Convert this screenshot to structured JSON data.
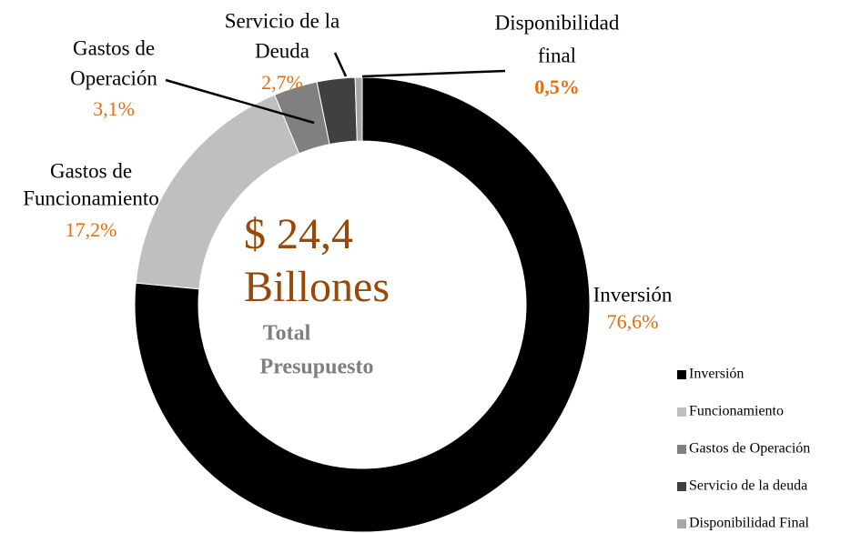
{
  "chart_data": {
    "type": "donut",
    "categories": [
      "Inversión",
      "Funcionamiento",
      "Gastos de Operación",
      "Servicio de la deuda",
      "Disponibilidad Final"
    ],
    "slice_labels": [
      [
        "Inversión"
      ],
      [
        "Gastos de",
        "Funcionamiento"
      ],
      [
        "Gastos de",
        "Operación"
      ],
      [
        "Servicio de la",
        "Deuda"
      ],
      [
        "Disponibilidad",
        "final"
      ]
    ],
    "values": [
      76.6,
      17.2,
      3.1,
      2.7,
      0.5
    ],
    "value_labels": [
      "76,6%",
      "17,2%",
      "3,1%",
      "2,7%",
      "0,5%"
    ],
    "colors": [
      "#000000",
      "#bfbfbf",
      "#808080",
      "#404040",
      "#a6a6a6"
    ],
    "center_text": {
      "amount": "$ 24,4",
      "unit": "Billones",
      "caption": [
        "Total",
        "Presupuesto"
      ]
    },
    "legend": "right-bottom"
  }
}
